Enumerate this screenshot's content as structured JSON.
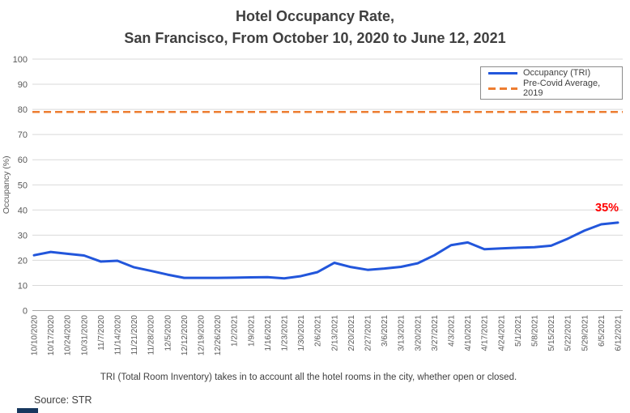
{
  "title": {
    "line1": "Hotel Occupancy Rate,",
    "line2": "San Francisco, From October 10, 2020 to June 12, 2021"
  },
  "legend": {
    "items": [
      {
        "label": "Occupancy (TRI)",
        "line_style": "solid",
        "color": "#2256db"
      },
      {
        "label": "Pre-Covid Average, 2019",
        "line_style": "dashed",
        "color": "#ed7d31"
      }
    ]
  },
  "annotation": {
    "text": "35%",
    "color": "#ff0000"
  },
  "footnote": "TRI (Total Room Inventory) takes in to account all the hotel rooms in the city, whether open or closed.",
  "source": "Source: STR",
  "colors": {
    "title_text": "#3f3f3f",
    "axis_text": "#595959",
    "gridline": "#d9d9d9",
    "axis_line": "#a6a6a6",
    "occupancy_line": "#2256db",
    "precovid_line": "#ed7d31",
    "annotation_red": "#ff0000"
  },
  "chart_data": {
    "type": "line",
    "title": "Hotel Occupancy Rate, San Francisco, From October 10, 2020 to June 12, 2021",
    "x": [
      "10/10/2020",
      "10/17/2020",
      "10/24/2020",
      "10/31/2020",
      "11/7/2020",
      "11/14/2020",
      "11/21/2020",
      "11/28/2020",
      "12/5/2020",
      "12/12/2020",
      "12/19/2020",
      "12/26/2020",
      "1/2/2021",
      "1/9/2021",
      "1/16/2021",
      "1/23/2021",
      "1/30/2021",
      "2/6/2021",
      "2/13/2021",
      "2/20/2021",
      "2/27/2021",
      "3/6/2021",
      "3/13/2021",
      "3/20/2021",
      "3/27/2021",
      "4/3/2021",
      "4/10/2021",
      "4/17/2021",
      "4/24/2021",
      "5/1/2021",
      "5/8/2021",
      "5/15/2021",
      "5/22/2021",
      "5/29/2021",
      "6/5/2021",
      "6/12/2021"
    ],
    "series": [
      {
        "name": "Occupancy (TRI)",
        "color": "#2256db",
        "line_style": "solid",
        "values": [
          22,
          23.3,
          22.6,
          21.9,
          19.5,
          19.8,
          17.2,
          15.8,
          14.3,
          13,
          13,
          13,
          13.1,
          13.2,
          13.3,
          12.8,
          13.7,
          15.3,
          19,
          17.3,
          16.2,
          16.7,
          17.4,
          18.8,
          22,
          26,
          27.1,
          24.4,
          24.7,
          25,
          25.2,
          25.8,
          28.6,
          31.8,
          34.3,
          35
        ]
      },
      {
        "name": "Pre-Covid Average, 2019",
        "color": "#ed7d31",
        "line_style": "dashed",
        "constant_value": 79
      }
    ],
    "ylabel": "Occupancy (%)",
    "xlabel": "",
    "ylim": [
      0,
      100
    ],
    "ytick_step": 10,
    "grid": "horizontal",
    "legend_position": "top-right",
    "end_label": {
      "text": "35%",
      "series": "Occupancy (TRI)",
      "value": 35
    }
  }
}
